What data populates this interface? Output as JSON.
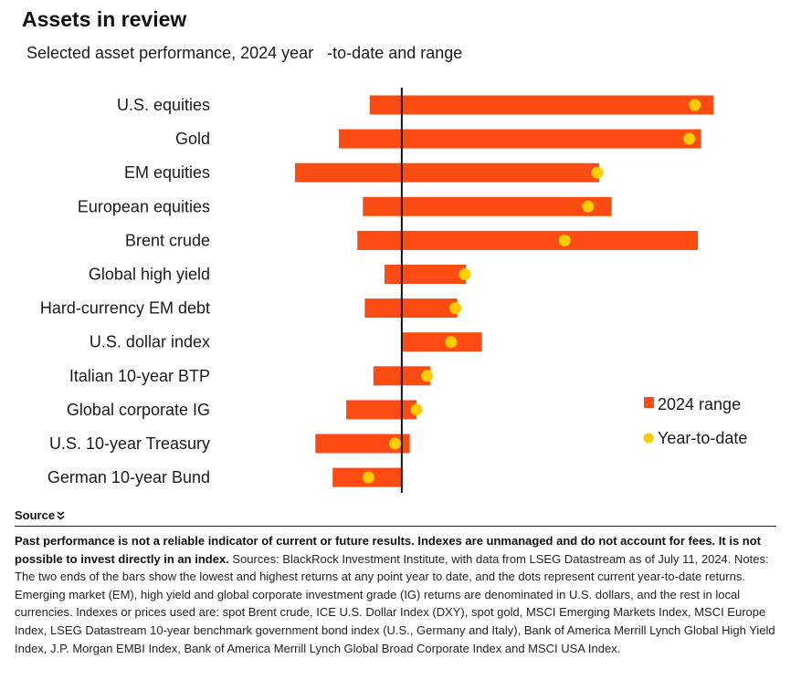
{
  "title": "Assets in review",
  "subtitle": "Selected asset performance, 2024 year   -to-date and range",
  "source_toggle": {
    "label": "Source",
    "icon": "double-chevron-down-icon"
  },
  "footnote": {
    "bold": "Past performance is not a reliable indicator of current or future results. Indexes are unmanaged and do not account for fees. It is not possible to invest directly in an index.",
    "text": " Sources: BlackRock Investment Institute, with data from LSEG Datastream as of July 11, 2024. Notes: The two ends of the bars show the lowest and highest returns at any point year to date, and the dots represent current year-to-date returns. Emerging market (EM), high yield and global corporate investment grade (IG) returns are denominated in U.S. dollars, and the rest in local currencies. Indexes or prices used are: spot Brent crude, ICE U.S. Dollar Index (DXY), spot gold, MSCI Emerging Markets Index, MSCI Europe Index, LSEG Datastream 10-year benchmark government bond index (U.S., Germany and Italy), Bank of America Merrill Lynch Global High Yield Index, J.P. Morgan EMBI Index, Bank of America Merrill Lynch Global Broad Corporate Index and MSCI USA Index."
  },
  "colors": {
    "range": "#fc4c14",
    "ytd": "#ffcc00",
    "zero_line": "#111111"
  },
  "chart_data": {
    "type": "bar",
    "orientation": "horizontal",
    "categories": [
      "U.S. equities",
      "Gold",
      "EM equities",
      "European equities",
      "Brent crude",
      "Global high yield",
      "Hard-currency EM debt",
      "U.S. dollar index",
      "Italian 10-year BTP",
      "Global corporate IG",
      "U.S. 10-year Treasury",
      "German 10-year Bund"
    ],
    "series": [
      {
        "name": "2024 range",
        "ranges": [
          [
            -5.2,
            50.5
          ],
          [
            -10.2,
            48.5
          ],
          [
            -17.3,
            32
          ],
          [
            -6.3,
            34
          ],
          [
            -7.2,
            48
          ],
          [
            -2.8,
            10.4
          ],
          [
            -6,
            9
          ],
          [
            0,
            13
          ],
          [
            -4.6,
            4.6
          ],
          [
            -9,
            2.4
          ],
          [
            -14,
            1.3
          ],
          [
            -11.2,
            0
          ]
        ]
      },
      {
        "name": "Year-to-date",
        "values": [
          47.5,
          46.6,
          31.7,
          30.2,
          26.4,
          10.2,
          8.7,
          8.0,
          4.1,
          2.4,
          -1.1,
          -5.4
        ]
      }
    ],
    "xlim": [
      -17.3,
      50.5
    ],
    "zero_line": true,
    "grid": false,
    "legend": "right"
  }
}
